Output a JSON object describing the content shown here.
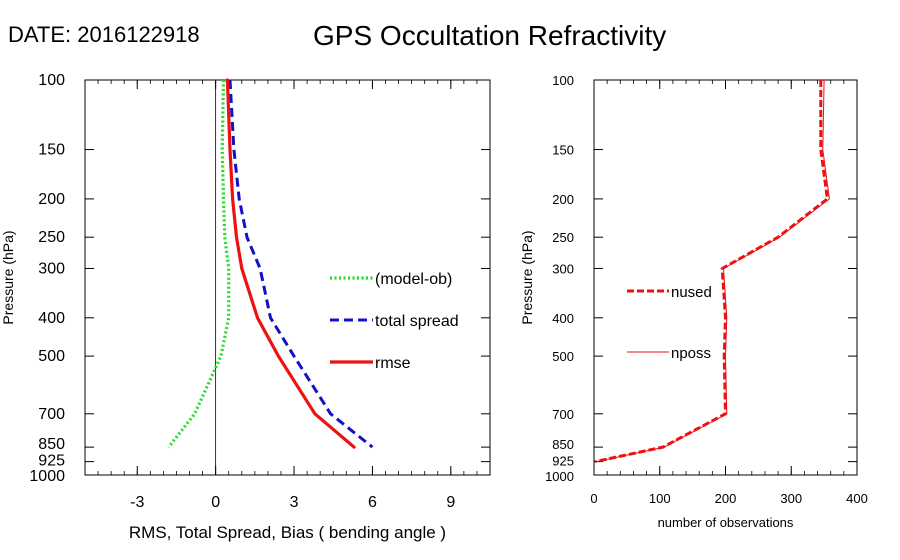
{
  "header": {
    "date_label": "DATE: 2016122918",
    "title": "GPS Occultation Refractivity"
  },
  "chart_data": [
    {
      "type": "line",
      "xlabel": "RMS, Total Spread, Bias ( bending angle )",
      "ylabel": "Pressure (hPa)",
      "xlim": [
        -5,
        10.5
      ],
      "ylim": [
        1000,
        100
      ],
      "yscale": "log",
      "xticks": [
        -3,
        0,
        3,
        6,
        9
      ],
      "yticks": [
        100,
        150,
        200,
        250,
        300,
        400,
        500,
        700,
        850,
        925,
        1000
      ],
      "zero_line": true,
      "series": [
        {
          "name": "(model-ob)",
          "color": "#22dd22",
          "style": "dotted",
          "points": [
            [
              0.3,
              100
            ],
            [
              0.25,
              150
            ],
            [
              0.3,
              200
            ],
            [
              0.35,
              250
            ],
            [
              0.5,
              300
            ],
            [
              0.5,
              400
            ],
            [
              0.2,
              500
            ],
            [
              -0.8,
              700
            ],
            [
              -1.8,
              850
            ]
          ]
        },
        {
          "name": "total spread",
          "color": "#1111cc",
          "style": "dashed",
          "points": [
            [
              0.55,
              100
            ],
            [
              0.7,
              150
            ],
            [
              0.9,
              200
            ],
            [
              1.2,
              250
            ],
            [
              1.7,
              300
            ],
            [
              2.1,
              400
            ],
            [
              3.0,
              500
            ],
            [
              4.4,
              700
            ],
            [
              6.0,
              850
            ]
          ]
        },
        {
          "name": "rmse",
          "color": "#ee1111",
          "style": "solid",
          "points": [
            [
              0.45,
              100
            ],
            [
              0.55,
              150
            ],
            [
              0.65,
              200
            ],
            [
              0.8,
              250
            ],
            [
              1.0,
              300
            ],
            [
              1.6,
              400
            ],
            [
              2.4,
              500
            ],
            [
              3.8,
              700
            ],
            [
              5.3,
              850
            ]
          ]
        }
      ]
    },
    {
      "type": "line",
      "xlabel": "number of observations",
      "ylabel": "Pressure (hPa)",
      "xlim": [
        0,
        400
      ],
      "ylim": [
        1000,
        100
      ],
      "yscale": "log",
      "xticks": [
        0,
        100,
        200,
        300,
        400
      ],
      "yticks": [
        100,
        150,
        200,
        250,
        300,
        400,
        500,
        700,
        850,
        925,
        1000
      ],
      "series": [
        {
          "name": "nused",
          "color": "#ee1111",
          "style": "dashed-thick",
          "points": [
            [
              345,
              100
            ],
            [
              345,
              150
            ],
            [
              355,
              200
            ],
            [
              280,
              250
            ],
            [
              195,
              300
            ],
            [
              200,
              400
            ],
            [
              198,
              500
            ],
            [
              200,
              700
            ],
            [
              105,
              850
            ],
            [
              2,
              925
            ]
          ]
        },
        {
          "name": "nposs",
          "color": "#ee1111",
          "style": "solid-thin",
          "points": [
            [
              350,
              100
            ],
            [
              348,
              150
            ],
            [
              358,
              200
            ],
            [
              282,
              250
            ],
            [
              197,
              300
            ],
            [
              202,
              400
            ],
            [
              200,
              500
            ],
            [
              202,
              700
            ],
            [
              107,
              850
            ],
            [
              4,
              925
            ]
          ]
        }
      ]
    }
  ]
}
